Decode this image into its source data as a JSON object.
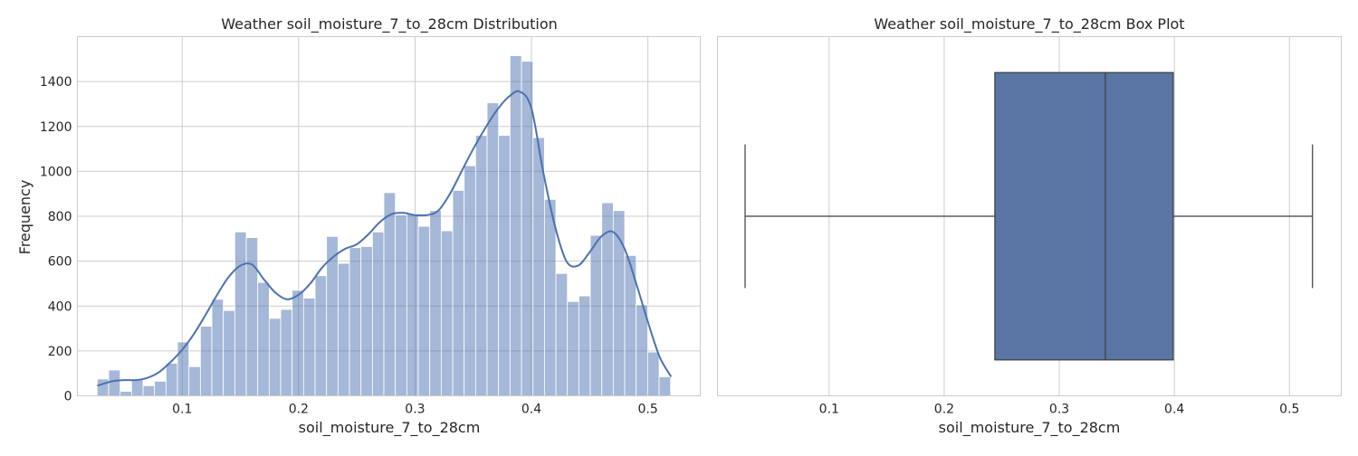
{
  "chart_data": [
    {
      "type": "histogram",
      "title": "Weather soil_moisture_7_to_28cm Distribution",
      "xlabel": "soil_moisture_7_to_28cm",
      "ylabel": "Frequency",
      "xlim": [
        0.01,
        0.545
      ],
      "ylim": [
        0,
        1600
      ],
      "xticks": [
        0.1,
        0.2,
        0.3,
        0.4,
        0.5
      ],
      "xtick_labels": [
        "0.1",
        "0.2",
        "0.3",
        "0.4",
        "0.5"
      ],
      "yticks": [
        0,
        200,
        400,
        600,
        800,
        1000,
        1200,
        1400
      ],
      "ytick_labels": [
        "0",
        "200",
        "400",
        "600",
        "800",
        "1000",
        "1200",
        "1400"
      ],
      "grid": true,
      "bar_color": "#4c72b0",
      "bin_start": 0.027,
      "bin_width": 0.00985,
      "values": [
        75,
        115,
        20,
        75,
        45,
        65,
        145,
        240,
        130,
        310,
        430,
        380,
        730,
        705,
        505,
        345,
        385,
        470,
        435,
        535,
        710,
        590,
        660,
        665,
        730,
        905,
        805,
        810,
        755,
        825,
        735,
        915,
        1025,
        1160,
        1305,
        1160,
        1515,
        1490,
        1150,
        875,
        545,
        420,
        445,
        715,
        860,
        825,
        625,
        405,
        195,
        85
      ],
      "kde": {
        "x": [
          0.027,
          0.04,
          0.05,
          0.06,
          0.07,
          0.08,
          0.09,
          0.1,
          0.11,
          0.12,
          0.13,
          0.14,
          0.15,
          0.16,
          0.17,
          0.18,
          0.19,
          0.2,
          0.21,
          0.22,
          0.23,
          0.24,
          0.25,
          0.26,
          0.27,
          0.28,
          0.29,
          0.3,
          0.31,
          0.32,
          0.33,
          0.34,
          0.35,
          0.36,
          0.37,
          0.38,
          0.39,
          0.4,
          0.41,
          0.42,
          0.43,
          0.44,
          0.45,
          0.46,
          0.47,
          0.48,
          0.49,
          0.5,
          0.51,
          0.52
        ],
        "y": [
          45,
          65,
          70,
          70,
          80,
          105,
          150,
          205,
          275,
          360,
          450,
          530,
          580,
          585,
          520,
          460,
          430,
          450,
          500,
          570,
          620,
          655,
          675,
          720,
          775,
          810,
          815,
          805,
          805,
          825,
          900,
          1000,
          1100,
          1190,
          1270,
          1330,
          1355,
          1280,
          1000,
          760,
          600,
          580,
          640,
          710,
          730,
          655,
          500,
          330,
          175,
          85
        ]
      }
    },
    {
      "type": "box",
      "title": "Weather soil_moisture_7_to_28cm Box Plot",
      "xlabel": "soil_moisture_7_to_28cm",
      "xlim": [
        0.003,
        0.545
      ],
      "xticks": [
        0.1,
        0.2,
        0.3,
        0.4,
        0.5
      ],
      "xtick_labels": [
        "0.1",
        "0.2",
        "0.3",
        "0.4",
        "0.5"
      ],
      "grid": true,
      "box_color": "#5975a4",
      "min": 0.027,
      "q1": 0.244,
      "median": 0.34,
      "q3": 0.399,
      "max": 0.52
    }
  ]
}
